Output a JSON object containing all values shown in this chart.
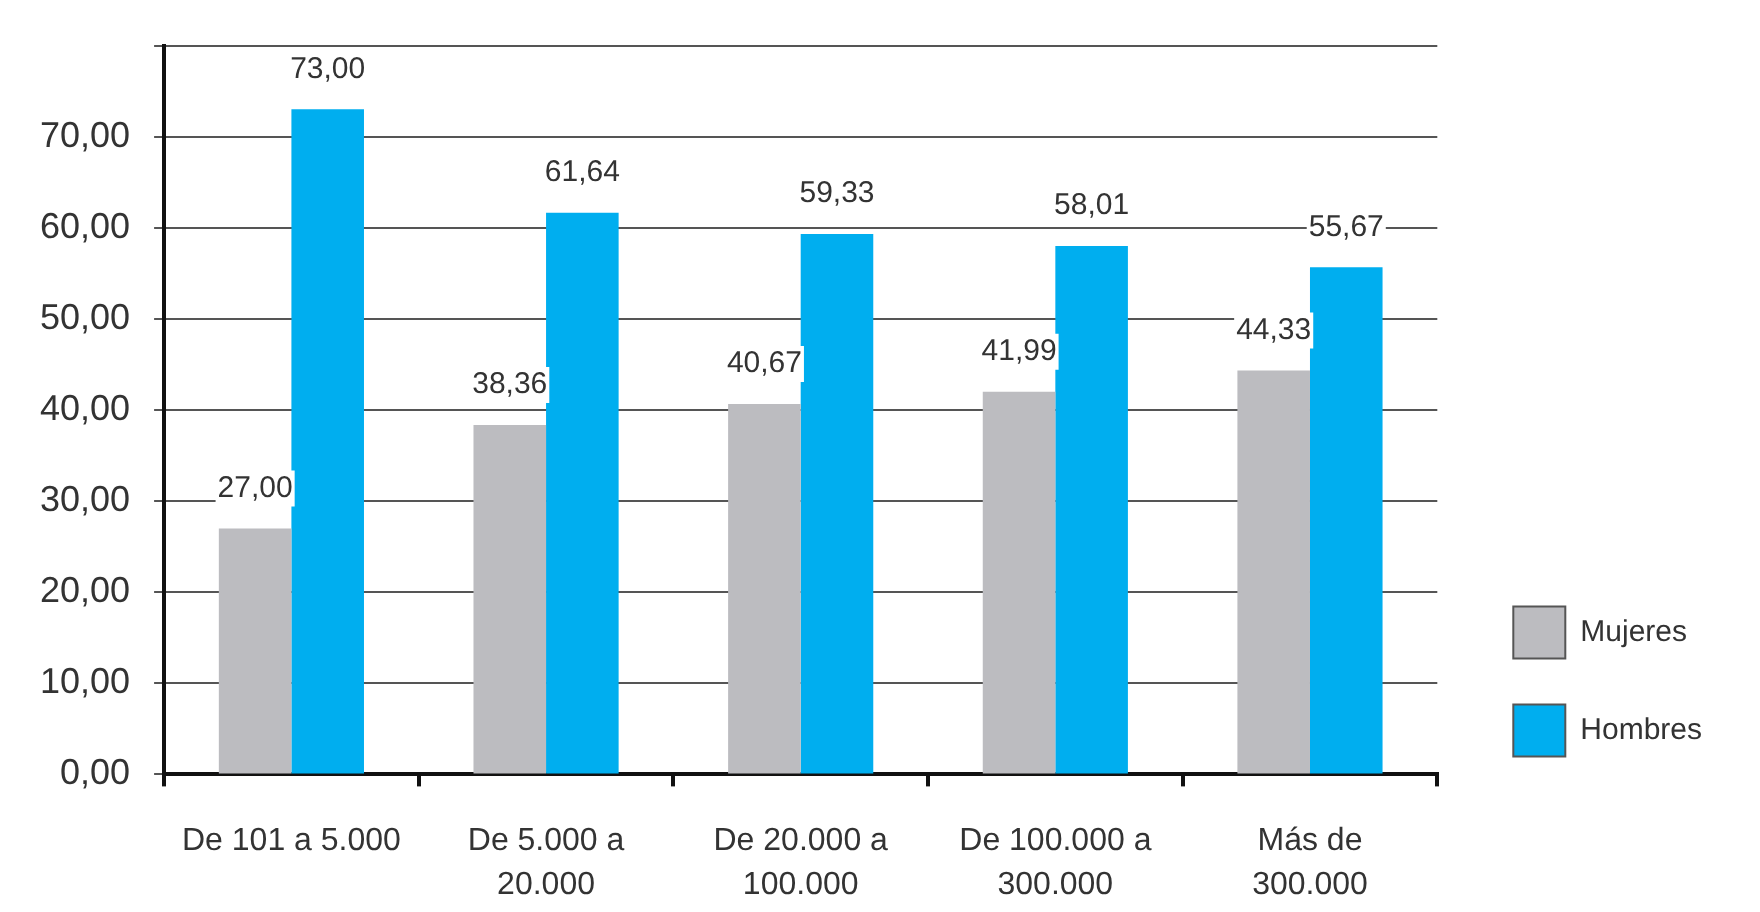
{
  "chart_data": {
    "type": "bar",
    "categories": [
      "De 101 a 5.000",
      "De 5.000 a 20.000",
      "De 20.000 a 100.000",
      "De 100.000 a 300.000",
      "Más de 300.000"
    ],
    "series": [
      {
        "name": "Mujeres",
        "color": "#bcbcc0",
        "values": [
          27.0,
          38.36,
          40.67,
          41.99,
          44.33
        ],
        "value_labels": [
          "27,00",
          "38,36",
          "40,67",
          "41,99",
          "44,33"
        ]
      },
      {
        "name": "Hombres",
        "color": "#00aeef",
        "values": [
          73.0,
          61.64,
          59.33,
          58.01,
          55.67
        ],
        "value_labels": [
          "73,00",
          "61,64",
          "59,33",
          "58,01",
          "55,67"
        ]
      }
    ],
    "ylim": [
      0,
      80
    ],
    "yticks": [
      {
        "value": 0,
        "label": "0,00"
      },
      {
        "value": 10,
        "label": "10,00"
      },
      {
        "value": 20,
        "label": "20,00"
      },
      {
        "value": 30,
        "label": "30,00"
      },
      {
        "value": 40,
        "label": "40,00"
      },
      {
        "value": 50,
        "label": "50,00"
      },
      {
        "value": 60,
        "label": "60,00"
      },
      {
        "value": 70,
        "label": "70,00"
      },
      {
        "value": 80,
        "label": null
      }
    ],
    "grid": "y",
    "legend": "bottom right"
  }
}
